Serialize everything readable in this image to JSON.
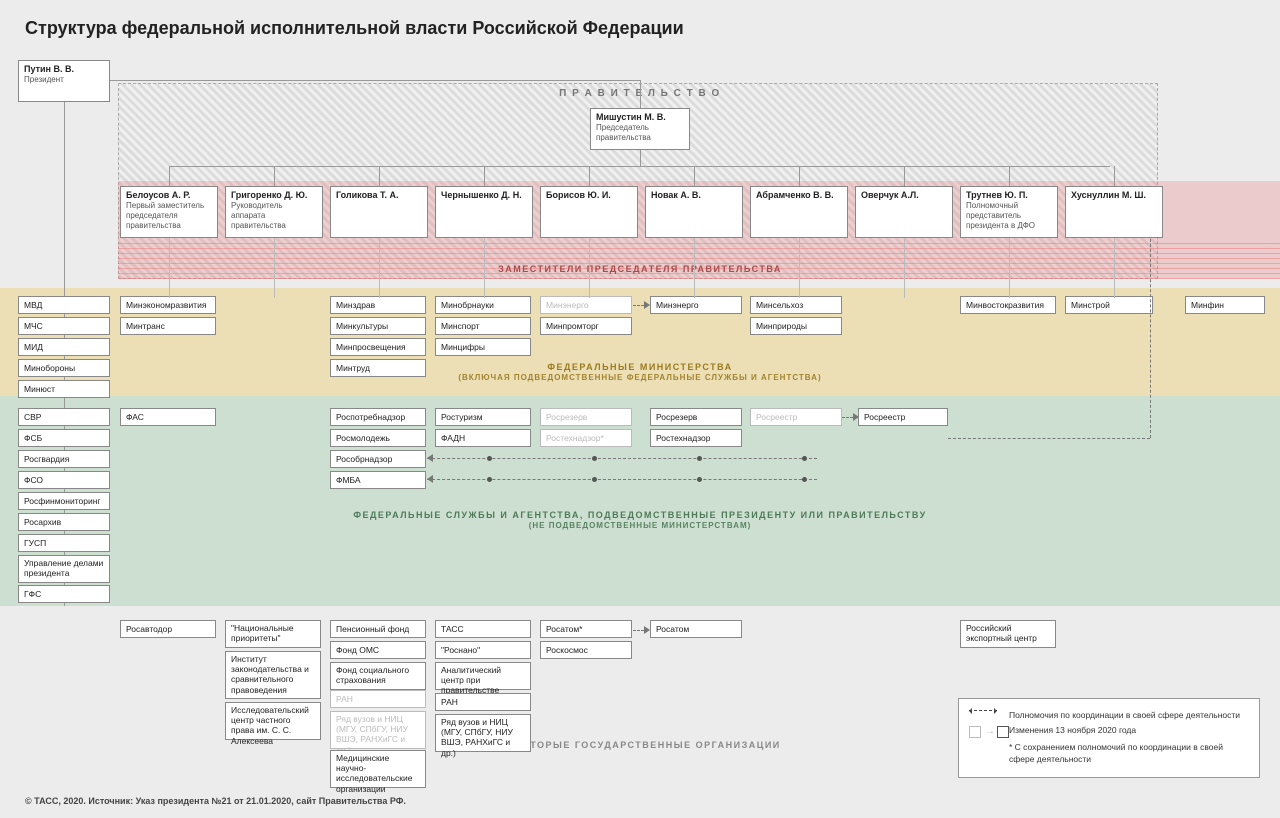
{
  "title": "Структура федеральной исполнительной власти Российской Федерации",
  "footer": "© ТАСС, 2020. Источник: Указ президента №21 от 21.01.2020, сайт Правительства РФ.",
  "colors": {
    "background": "#ececec",
    "box_border": "#888888",
    "ghost": "#bbbbbb",
    "red_band": "rgba(235,120,120,0.28)",
    "yellow_band": "rgba(240,200,80,0.35)",
    "green_band": "rgba(150,200,160,0.35)",
    "red_text": "#a94b4b",
    "yellow_text": "#9a7a1f",
    "green_text": "#4d7b58",
    "gray_text": "#888888"
  },
  "legend": {
    "item1": "Полномочия по координации в своей сфере деятельности",
    "item2": "Изменения 13 ноября 2020 года",
    "item3": "* С сохранением полномочий по координации в своей сфере деятельности"
  },
  "bands": {
    "gov_label": "П Р А В И Т Е Л Ь С Т В О",
    "deputies": "ЗАМЕСТИТЕЛИ ПРЕДСЕДАТЕЛЯ ПРАВИТЕЛЬСТВА",
    "ministries": "ФЕДЕРАЛЬНЫЕ МИНИСТЕРСТВА",
    "ministries_sub": "(ВКЛЮЧАЯ ПОДВЕДОМСТВЕННЫЕ ФЕДЕРАЛЬНЫЕ СЛУЖБЫ И АГЕНТСТВА)",
    "agencies": "ФЕДЕРАЛЬНЫЕ СЛУЖБЫ И АГЕНТСТВА, ПОДВЕДОМСТВЕННЫЕ ПРЕЗИДЕНТУ ИЛИ ПРАВИТЕЛЬСТВУ",
    "agencies_sub": "(НЕ ПОДВЕДОМСТВЕННЫЕ МИНИСТЕРСТВАМ)",
    "orgs": "НЕКОТОРЫЕ ГОСУДАРСТВЕННЫЕ ОРГАНИЗАЦИИ"
  },
  "president": {
    "name": "Путин В. В.",
    "role": "Президент"
  },
  "pm": {
    "name": "Мишустин М. В.",
    "role": "Председатель правительства"
  },
  "deputies": [
    {
      "name": "Белоусов А. Р.",
      "role": "Первый заместитель председателя правительства"
    },
    {
      "name": "Григоренко Д. Ю.",
      "role": "Руководитель аппарата правительства"
    },
    {
      "name": "Голикова Т. А.",
      "role": ""
    },
    {
      "name": "Чернышенко Д. Н.",
      "role": ""
    },
    {
      "name": "Борисов Ю. И.",
      "role": ""
    },
    {
      "name": "Новак А. В.",
      "role": ""
    },
    {
      "name": "Абрамченко В. В.",
      "role": ""
    },
    {
      "name": "Оверчук А.Л.",
      "role": ""
    },
    {
      "name": "Трутнев Ю. П.",
      "role": "Полномочный представитель президента в ДФО"
    },
    {
      "name": "Хуснуллин М. Ш.",
      "role": ""
    }
  ],
  "president_agencies_yellow": [
    "МВД",
    "МЧС",
    "МИД",
    "Минобороны",
    "Минюст"
  ],
  "president_agencies_green": [
    "СВР",
    "ФСБ",
    "Росгвардия",
    "ФСО",
    "Росфинмониторинг",
    "Росархив",
    "ГУСП",
    "Управление делами президента",
    "ГФС"
  ],
  "col_belousov_y": [
    "Минэкономразвития",
    "Минтранс"
  ],
  "col_belousov_g": [
    "ФАС"
  ],
  "col_belousov_o": [
    "Росавтодор"
  ],
  "col_grigorenko_o": [
    "\"Национальные приоритеты\"",
    "Институт законодательства и сравнительного правоведения",
    "Исследовательский центр частного права им. С. С. Алексеева"
  ],
  "col_golikova_y": [
    "Минздрав",
    "Минкультуры",
    "Минпросвещения",
    "Минтруд"
  ],
  "col_golikova_g": [
    "Роспотребнадзор",
    "Росмолодежь",
    "Рособрнадзор",
    "ФМБА"
  ],
  "col_golikova_o": [
    "Пенсионный фонд",
    "Фонд ОМС",
    "Фонд социального страхования"
  ],
  "col_golikova_ghost": [
    "РАН",
    "Ряд вузов и НИЦ (МГУ, СПбГУ, НИУ ВШЭ, РАНХиГС и др.)"
  ],
  "col_golikova_o2": [
    "Медицинские научно-исследовательские организации"
  ],
  "col_chern_y": [
    "Минобрнауки",
    "Минспорт",
    "Минцифры"
  ],
  "col_chern_g": [
    "Ростуризм",
    "ФАДН"
  ],
  "col_chern_o": [
    "ТАСС",
    "\"Роснано\"",
    "Аналитический центр при правительстве",
    "РАН",
    "Ряд вузов и НИЦ (МГУ, СПбГУ, НИУ ВШЭ, РАНХиГС и др.)"
  ],
  "col_borisov_y": [
    "Минэнерго",
    "Минпромторг"
  ],
  "col_borisov_y_ghost": true,
  "col_borisov_g_ghost": [
    "Росрезерв",
    "Ростехнадзор*"
  ],
  "col_borisov_o": [
    "Росатом*",
    "Роскосмос"
  ],
  "col_novak_y": [
    "Минэнерго"
  ],
  "col_novak_g": [
    "Росрезерв",
    "Ростехнадзор"
  ],
  "col_novak_o": [
    "Росатом"
  ],
  "col_abram_y": [
    "Минсельхоз",
    "Минприроды"
  ],
  "col_abram_g_ghost": [
    "Росреестр"
  ],
  "col_trutnev_y": [
    "Минвостокразвития"
  ],
  "col_trutnev_o": [
    "Российский экспортный центр"
  ],
  "col_husn_y": [
    "Минстрой"
  ],
  "col_husn_g": [
    "Росреестр"
  ],
  "extra_y": [
    "Минфин"
  ]
}
